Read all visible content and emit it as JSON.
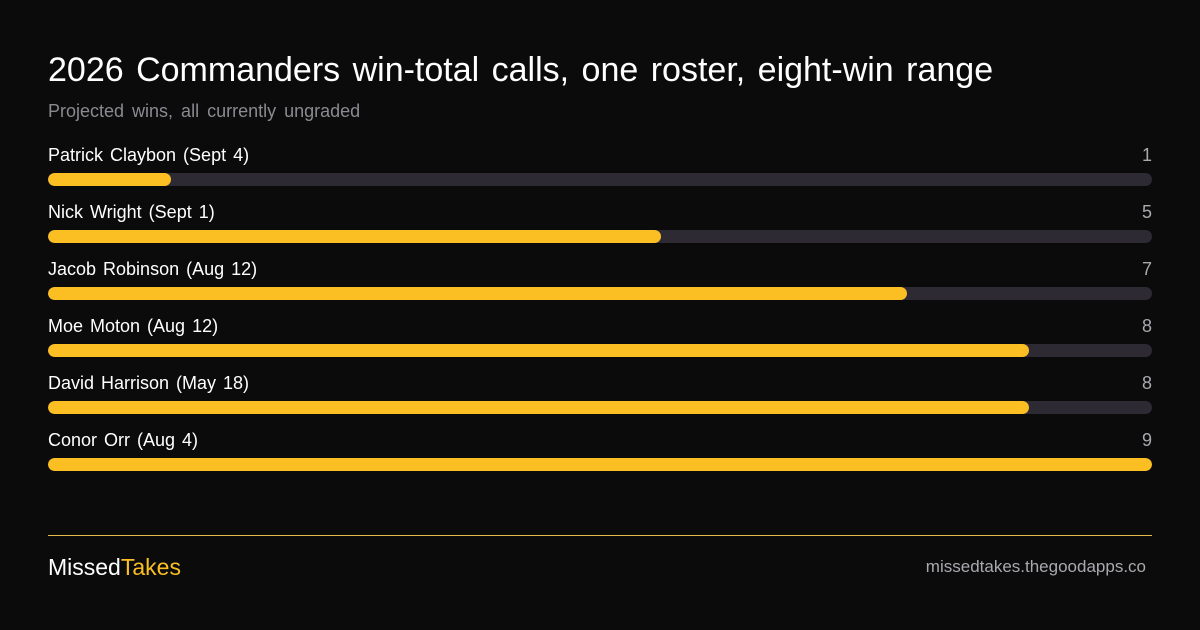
{
  "header": {
    "title": "2026 Commanders win-total calls, one roster, eight-win range",
    "subtitle": "Projected wins, all currently ungraded"
  },
  "chart_data": {
    "type": "bar",
    "orientation": "horizontal",
    "title": "2026 Commanders win-total calls, one roster, eight-win range",
    "subtitle": "Projected wins, all currently ungraded",
    "categories": [
      "Patrick Claybon (Sept 4)",
      "Nick Wright (Sept 1)",
      "Jacob Robinson (Aug 12)",
      "Moe Moton (Aug 12)",
      "David Harrison (May 18)",
      "Conor Orr (Aug 4)"
    ],
    "values": [
      1,
      5,
      7,
      8,
      8,
      9
    ],
    "xlim": [
      0,
      9
    ],
    "grid": false,
    "bar_color": "#fbbf24",
    "track_color": "#2d2a33"
  },
  "footer": {
    "brand_part1": "Missed",
    "brand_part2": "Takes",
    "site": "missedtakes.thegoodapps.co"
  },
  "colors": {
    "background": "#0b0b0c",
    "accent": "#fbbf24",
    "divider": "#e7b84a",
    "muted_text": "#a9a9ae"
  }
}
